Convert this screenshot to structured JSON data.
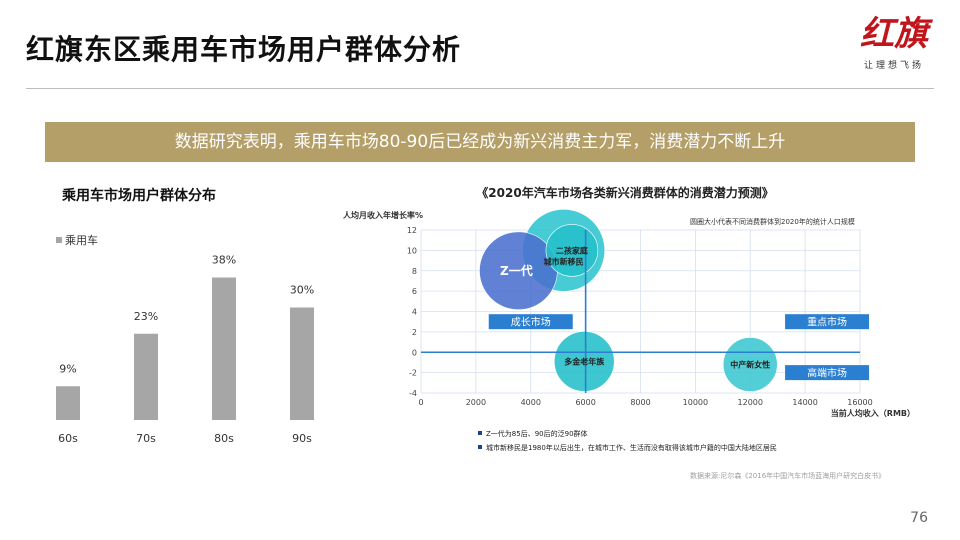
{
  "slide": {
    "title": "红旗东区乘用车市场用户群体分析",
    "brand": "红旗",
    "slogan": "让理想飞扬",
    "banner": "数据研究表明，乘用车市场80-90后已经成为新兴消费主力军，消费潜力不断上升",
    "page_number": "76"
  },
  "chart_data": [
    {
      "type": "bar",
      "title": "乘用车市场用户群体分布",
      "categories": [
        "60s",
        "70s",
        "80s",
        "90s"
      ],
      "series": [
        {
          "name": "乘用车",
          "values": [
            9,
            23,
            38,
            30
          ],
          "labels": [
            "9%",
            "23%",
            "38%",
            "30%"
          ]
        }
      ],
      "ylim": [
        0,
        40
      ],
      "grid": false,
      "legend": "top-left",
      "colors": {
        "bar": "#a6a6a6"
      }
    },
    {
      "type": "scatter",
      "title": "《2020年汽车市场各类新兴消费群体的消费潜力预测》",
      "xlabel": "当前人均收入（RMB）",
      "ylabel": "人均月收入年增长率%",
      "note": "圆圈大小代表不同消费群体到2020年的统计人口规模",
      "xlim": [
        0,
        16000
      ],
      "ylim": [
        -4,
        12
      ],
      "xticks": [
        0,
        2000,
        4000,
        6000,
        8000,
        10000,
        12000,
        14000,
        16000
      ],
      "yticks": [
        -4,
        -2,
        0,
        2,
        4,
        6,
        8,
        10,
        12
      ],
      "grid": true,
      "divider_x": 6000,
      "divider_y": 0,
      "bubbles": [
        {
          "name": "城市新移民",
          "x": 5200,
          "y": 10,
          "size": 3000,
          "color": "#2ec4cf",
          "label": "城市新移民"
        },
        {
          "name": "Z一代",
          "x": 3550,
          "y": 8,
          "size": 2700,
          "color": "#4a6fce",
          "label": "Z一代"
        },
        {
          "name": "二孩家庭",
          "x": 5500,
          "y": 10,
          "size": 1200,
          "color": "#25c0cb",
          "label": "二孩家庭"
        },
        {
          "name": "多金老年族",
          "x": 5950,
          "y": -0.9,
          "size": 1600,
          "color": "#23bfca",
          "label": "多金老年族"
        },
        {
          "name": "中产新女性",
          "x": 12000,
          "y": -1.2,
          "size": 1300,
          "color": "#3bc7d1",
          "label": "中产新女性"
        }
      ],
      "quadrant_labels": [
        {
          "text": "成长市场",
          "x": 4000,
          "y": 3
        },
        {
          "text": "重点市场",
          "x": 14800,
          "y": 3
        },
        {
          "text": "高端市场",
          "x": 14800,
          "y": -2
        }
      ],
      "legend_notes": [
        "Z一代为85后、90后的泛90群体",
        "城市新移民是1980年以后出生，在城市工作、生活而没有取得该城市户籍的中国大陆地区居民"
      ],
      "source": "数据来源:尼尔森《2016年中国汽车市场蓝海用户研究白皮书》",
      "colors": {
        "grid": "#d5dfef",
        "divider": "#2b7fd1",
        "quadrant_box": "#2b7fd1"
      }
    }
  ]
}
